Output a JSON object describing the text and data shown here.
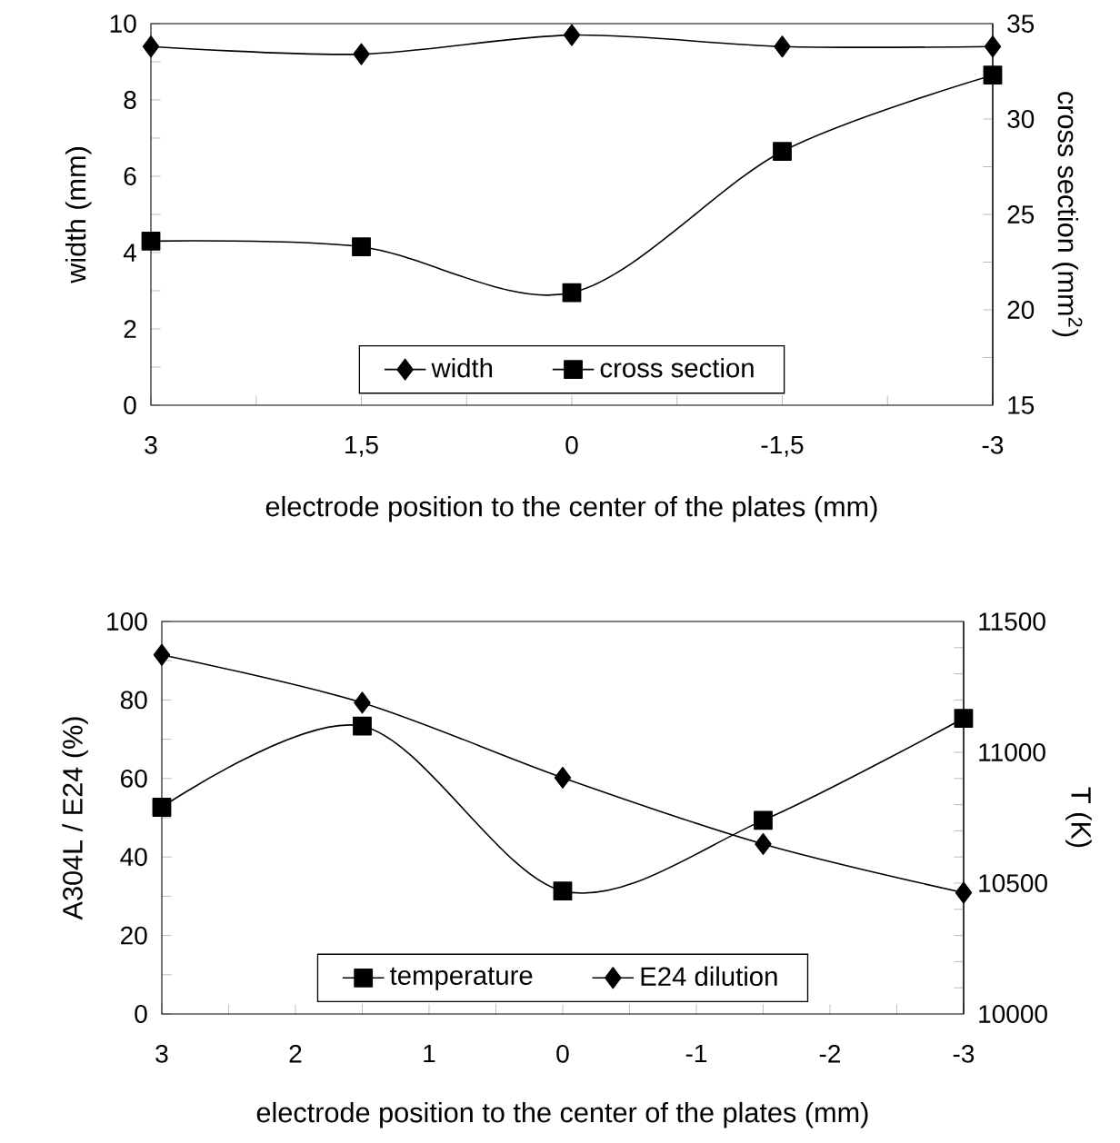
{
  "chart_data": [
    {
      "type": "line",
      "xlabel": "electrode position to the center of the plates (mm)",
      "ylabel": "width (mm)",
      "y2label": "cross section (mm$^{2}$)",
      "x": [
        3,
        1.5,
        0,
        -1.5,
        -3
      ],
      "xlim": [
        3,
        -3
      ],
      "xticks": [
        3,
        {
          "value": 2.25,
          "label": null
        },
        {
          "value": 1.5,
          "label": "1,5"
        },
        {
          "value": 0.75,
          "label": null
        },
        0,
        {
          "value": -0.75,
          "label": null
        },
        {
          "value": -1.5,
          "label": "-1,5"
        },
        {
          "value": -2.25,
          "label": null
        },
        -3
      ],
      "ylim": [
        0,
        10
      ],
      "yticks": [
        0,
        {
          "value": 1,
          "label": null
        },
        2,
        {
          "value": 3,
          "label": null
        },
        4,
        {
          "value": 5,
          "label": null
        },
        6,
        {
          "value": 7,
          "label": null
        },
        8,
        {
          "value": 9,
          "label": null
        },
        10
      ],
      "y2lim": [
        15,
        35
      ],
      "y2ticks": [
        15,
        {
          "value": 17.5,
          "label": null
        },
        20,
        {
          "value": 22.5,
          "label": null
        },
        25,
        {
          "value": 27.5,
          "label": null
        },
        30,
        {
          "value": 32.5,
          "label": null
        },
        35
      ],
      "legend": "bottom",
      "series": [
        {
          "name": "width",
          "color": "#000000",
          "marker": "diamond",
          "values": [
            9.4,
            9.2,
            9.7,
            9.4,
            9.4
          ]
        },
        {
          "name": "cross section",
          "color": "#000000",
          "marker": "square",
          "axis": "y2",
          "values": [
            23.6,
            23.3,
            20.9,
            28.3,
            32.3
          ]
        }
      ]
    },
    {
      "type": "line",
      "xlabel": "electrode position to the center of the plates (mm)",
      "ylabel": "A304L / E24 (%)",
      "y2label": "T (K)",
      "x": [
        3,
        1.5,
        0,
        -1.5,
        -3
      ],
      "xlim": [
        3,
        -3
      ],
      "xticks": [
        3,
        {
          "value": 2.5,
          "label": null
        },
        2,
        {
          "value": 1.5,
          "label": null
        },
        1,
        {
          "value": 0.5,
          "label": null
        },
        0,
        {
          "value": -0.5,
          "label": null
        },
        -1,
        {
          "value": -1.5,
          "label": null
        },
        -2,
        {
          "value": -2.5,
          "label": null
        },
        -3
      ],
      "ylim": [
        0,
        100
      ],
      "yticks": [
        0,
        {
          "value": 10,
          "label": null
        },
        20,
        {
          "value": 30,
          "label": null
        },
        40,
        {
          "value": 50,
          "label": null
        },
        60,
        {
          "value": 70,
          "label": null
        },
        80,
        {
          "value": 90,
          "label": null
        },
        100
      ],
      "y2lim": [
        10000,
        11500
      ],
      "y2ticks": [
        10000,
        {
          "value": 10100,
          "label": null
        },
        {
          "value": 10200,
          "label": null
        },
        {
          "value": 10300,
          "label": null
        },
        {
          "value": 10400,
          "label": null
        },
        10500,
        {
          "value": 10600,
          "label": null
        },
        {
          "value": 10700,
          "label": null
        },
        {
          "value": 10800,
          "label": null
        },
        {
          "value": 10900,
          "label": null
        },
        11000,
        {
          "value": 11100,
          "label": null
        },
        {
          "value": 11200,
          "label": null
        },
        {
          "value": 11300,
          "label": null
        },
        {
          "value": 11400,
          "label": null
        },
        11500
      ],
      "legend": "bottom",
      "series": [
        {
          "name": "temperature",
          "color": "#000000",
          "marker": "square",
          "axis": "y2",
          "values": [
            10790,
            11100,
            10470,
            10740,
            11130
          ]
        },
        {
          "name": "E24 dilution",
          "color": "#000000",
          "marker": "diamond",
          "values": [
            91.5,
            79.3,
            60.2,
            43.3,
            30.9
          ]
        }
      ]
    }
  ]
}
